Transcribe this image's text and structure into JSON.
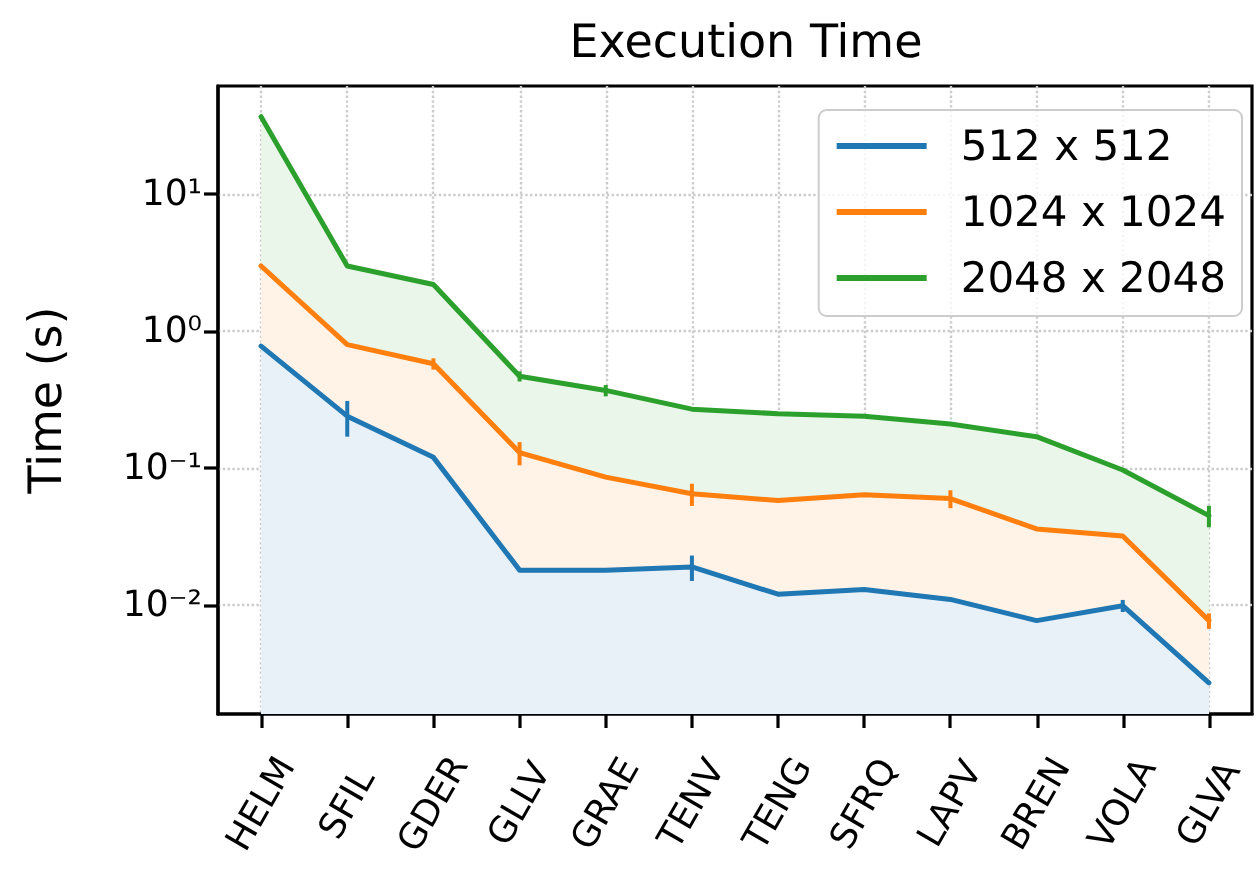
{
  "chart_data": {
    "type": "area",
    "title": "Execution Time",
    "ylabel": "Time (s)",
    "categories": [
      "HELM",
      "SFIL",
      "GDER",
      "GLLV",
      "GRAE",
      "TENV",
      "TENG",
      "SFRQ",
      "LAPV",
      "BREN",
      "VOLA",
      "GLVA"
    ],
    "series": [
      {
        "name": "512 x 512",
        "color": "#1f77b4",
        "values": [
          0.78,
          0.24,
          0.12,
          0.018,
          0.018,
          0.019,
          0.012,
          0.013,
          0.011,
          0.0077,
          0.0099,
          0.0027
        ],
        "errors": [
          null,
          0.07,
          null,
          null,
          null,
          0.004,
          null,
          null,
          null,
          null,
          0.001,
          null
        ]
      },
      {
        "name": "1024 x 1024",
        "color": "#ff7f0e",
        "values": [
          3.0,
          0.8,
          0.58,
          0.13,
          0.086,
          0.065,
          0.058,
          0.064,
          0.06,
          0.036,
          0.032,
          0.0077
        ],
        "errors": [
          null,
          null,
          0.055,
          0.025,
          null,
          0.012,
          null,
          null,
          0.009,
          null,
          null,
          0.001
        ]
      },
      {
        "name": "2048 x 2048",
        "color": "#2ca02c",
        "values": [
          37,
          3.0,
          2.2,
          0.47,
          0.37,
          0.27,
          0.25,
          0.24,
          0.21,
          0.17,
          0.097,
          0.045
        ],
        "errors": [
          null,
          null,
          null,
          0.04,
          0.035,
          null,
          null,
          null,
          null,
          null,
          null,
          0.008
        ]
      }
    ],
    "ylim": [
      0.0016,
      62
    ],
    "yticks": [
      {
        "value": 0.01,
        "label": "10⁻²"
      },
      {
        "value": 0.1,
        "label": "10⁻¹"
      },
      {
        "value": 1,
        "label": "10⁰"
      },
      {
        "value": 10,
        "label": "10¹"
      }
    ],
    "log": true,
    "grid": true,
    "legend": "top right"
  }
}
